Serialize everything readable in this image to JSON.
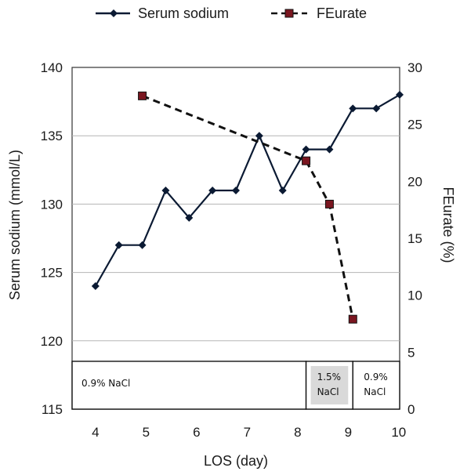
{
  "chart_data": {
    "type": "line",
    "title": "",
    "xlabel": "LOS (day)",
    "ylabel_left": "Serum sodium (mmol/L)",
    "ylabel_right": "FEurate (%)",
    "x_tick_labels": [
      "4",
      "5",
      "6",
      "7",
      "8",
      "9",
      "10"
    ],
    "ylim_left": [
      115,
      140
    ],
    "yticks_left": [
      115,
      120,
      125,
      130,
      135,
      140
    ],
    "ylim_right": [
      0,
      30
    ],
    "yticks_right": [
      0,
      5,
      10,
      15,
      20,
      25,
      30
    ],
    "grid": "horizontal",
    "legend_position": "top",
    "series": [
      {
        "name": "Serum sodium",
        "axis": "left",
        "color": "#0b1a33",
        "line_style": "solid",
        "marker": "diamond",
        "x": [
          4,
          4.5,
          5,
          5.5,
          6,
          6.5,
          7,
          7.5,
          8,
          8.5,
          9,
          9.5,
          10,
          10.5
        ],
        "values": [
          124,
          127,
          127,
          131,
          129,
          131,
          131,
          135,
          131,
          134,
          134,
          137,
          137,
          138
        ]
      },
      {
        "name": "FEurate",
        "axis": "right",
        "color": "#111111",
        "marker_color": "#7a1620",
        "line_style": "dashed",
        "marker": "square",
        "x": [
          5,
          8.5,
          9,
          9.5
        ],
        "values": [
          27.5,
          21.8,
          18,
          7.9
        ]
      }
    ],
    "treatment_bands": [
      {
        "label_line1": "0.9% NaCl",
        "label_line2": "",
        "from": 3.5,
        "to": 8.5,
        "fill": "#ffffff"
      },
      {
        "label_line1": "1.5%",
        "label_line2": "NaCl",
        "from": 8.5,
        "to": 9.5,
        "fill": "#d9d9d9"
      },
      {
        "label_line1": "0.9%",
        "label_line2": "NaCl",
        "from": 9.5,
        "to": 10.5,
        "fill": "#ffffff"
      }
    ]
  }
}
